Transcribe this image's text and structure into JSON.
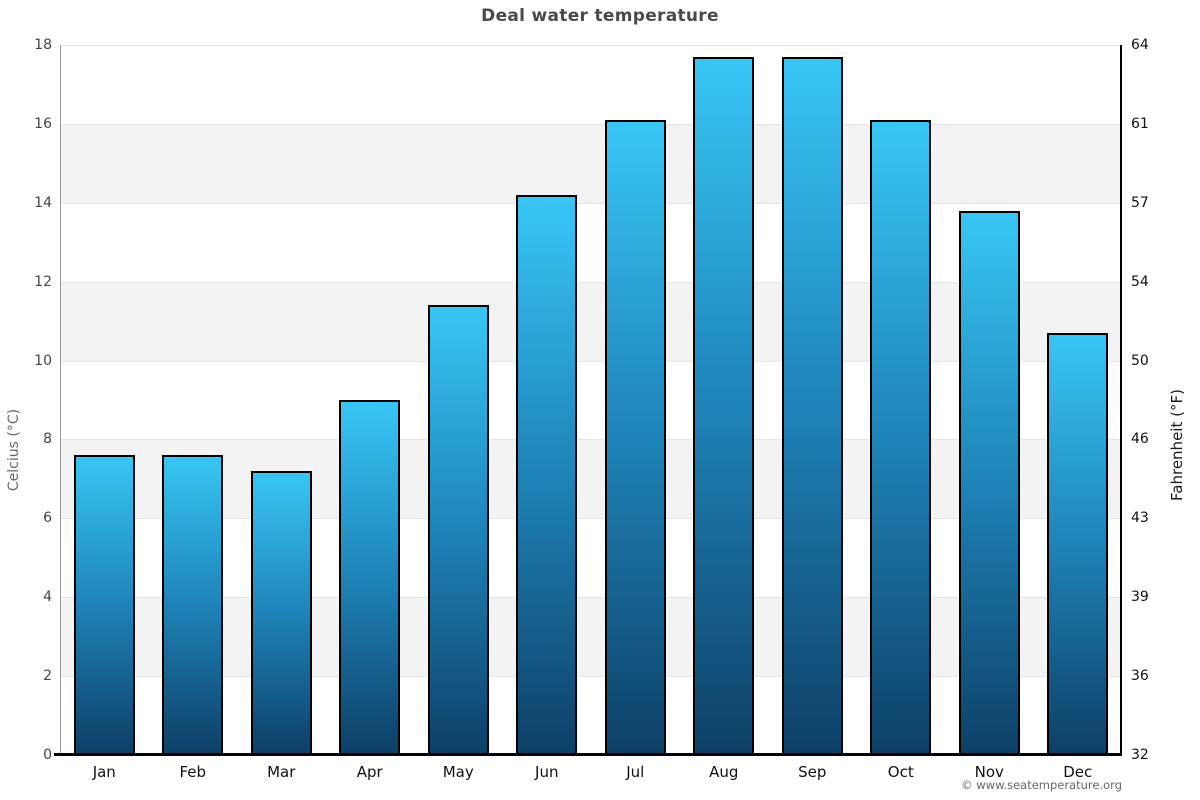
{
  "page": {
    "footer_credit": "© www.seatemperature.org"
  },
  "chart_data": {
    "type": "bar",
    "title": "Deal water temperature",
    "categories": [
      "Jan",
      "Feb",
      "Mar",
      "Apr",
      "May",
      "Jun",
      "Jul",
      "Aug",
      "Sep",
      "Oct",
      "Nov",
      "Dec"
    ],
    "values": [
      7.6,
      7.6,
      7.2,
      9.0,
      11.4,
      14.2,
      16.1,
      17.7,
      17.7,
      16.1,
      13.8,
      10.7
    ],
    "series_name": "Water temperature (°C)",
    "ylabel_left": "Celcius (°C)",
    "ylabel_right": "Fahrenheit (°F)",
    "ylim": [
      0,
      18
    ],
    "ytick_step": 2,
    "yticks_celsius": [
      0,
      2,
      4,
      6,
      8,
      10,
      12,
      14,
      16,
      18
    ],
    "yticks_fahrenheit": [
      "32",
      "36",
      "39",
      "43",
      "46",
      "50",
      "54",
      "57",
      "61",
      "64"
    ],
    "legend": "none",
    "grid": "horizontal gridlines with alternating gray bands every 2°C",
    "colors": {
      "bar_gradient_top": "#38c6f5",
      "bar_gradient_mid": "#1f86bb",
      "bar_gradient_bottom": "#0d4067",
      "bar_border": "#000000",
      "band_gray": "#f3f3f3",
      "band_white": "#ffffff",
      "gridline": "#e4e4e4",
      "title_color": "#4a4a4a",
      "footer_color": "#666666"
    }
  }
}
